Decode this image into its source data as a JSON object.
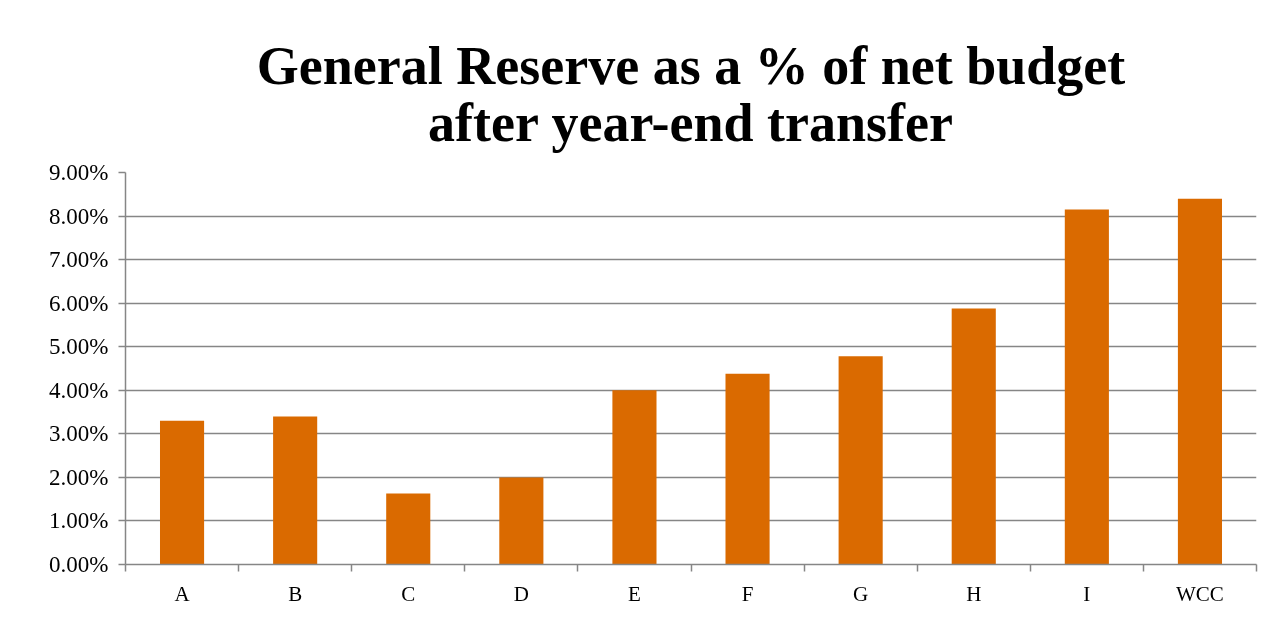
{
  "chart_data": {
    "type": "bar",
    "title": "General Reserve as a % of net budget\nafter year-end transfer",
    "categories": [
      "A",
      "B",
      "C",
      "D",
      "E",
      "F",
      "G",
      "H",
      "I",
      "WCC"
    ],
    "values": [
      3.3,
      3.4,
      1.63,
      2.0,
      4.0,
      4.38,
      4.78,
      5.88,
      8.15,
      8.4
    ],
    "color": "#da6a00",
    "ylim": [
      0,
      9
    ],
    "yticks": [
      {
        "value": 0,
        "label": "0.00%"
      },
      {
        "value": 1,
        "label": "1.00%"
      },
      {
        "value": 2,
        "label": "2.00%"
      },
      {
        "value": 3,
        "label": "3.00%"
      },
      {
        "value": 4,
        "label": "4.00%"
      },
      {
        "value": 5,
        "label": "5.00%"
      },
      {
        "value": 6,
        "label": "6.00%"
      },
      {
        "value": 7,
        "label": "7.00%"
      },
      {
        "value": 8,
        "label": "8.00%"
      },
      {
        "value": 9,
        "label": "9.00%"
      }
    ],
    "grid": "y"
  }
}
